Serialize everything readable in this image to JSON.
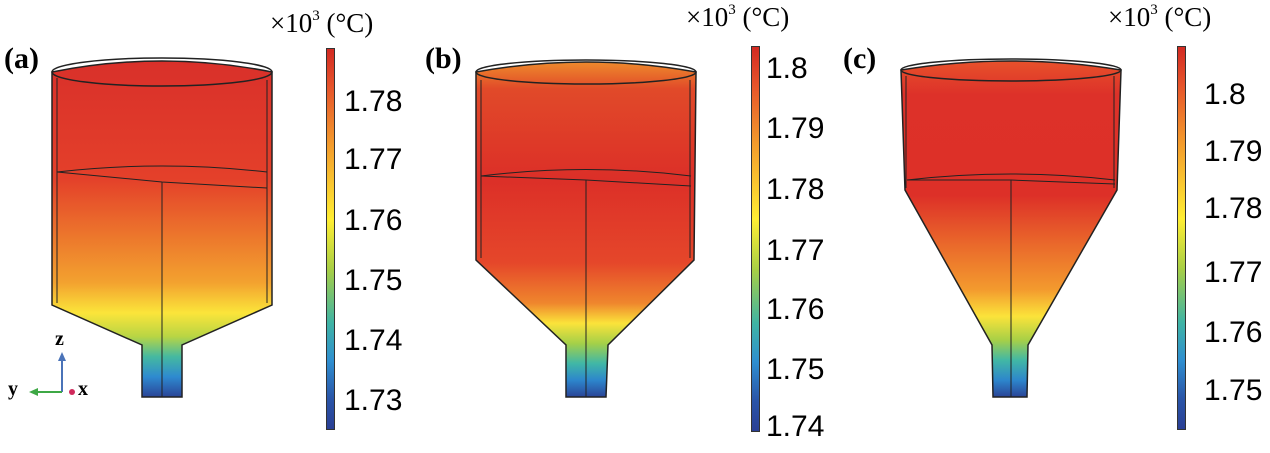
{
  "panels": [
    {
      "label": "(a)",
      "units_prefix": "×10",
      "units_exp": "3",
      "units_suffix": " (°C)",
      "ticks": [
        "1.78",
        "1.77",
        "1.76",
        "1.75",
        "1.74",
        "1.73"
      ]
    },
    {
      "label": "(b)",
      "units_prefix": "×10",
      "units_exp": "3",
      "units_suffix": " (°C)",
      "ticks": [
        "1.8",
        "1.79",
        "1.78",
        "1.77",
        "1.76",
        "1.75",
        "1.74"
      ]
    },
    {
      "label": "(c)",
      "units_prefix": "×10",
      "units_exp": "3",
      "units_suffix": " (°C)",
      "ticks": [
        "1.8",
        "1.79",
        "1.78",
        "1.77",
        "1.76",
        "1.75"
      ]
    }
  ],
  "axes": {
    "z": "z",
    "y": "y",
    "x": "x"
  },
  "colormap": {
    "hot": "#d22a22",
    "warm": "#f39a2c",
    "mid": "#ffee33",
    "cool": "#3fb4a4",
    "cold": "#2a3f94"
  }
}
